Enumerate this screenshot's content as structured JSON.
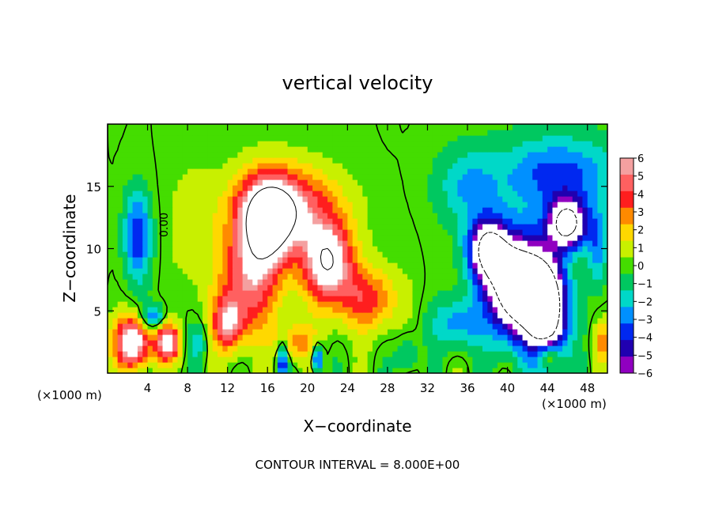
{
  "chart_data": {
    "type": "heatmap",
    "title": "vertical velocity",
    "xlabel": "X−coordinate",
    "ylabel": "Z−coordinate",
    "x_unit": "(×1000 m)",
    "y_unit": "(×1000 m)",
    "xlim": [
      0,
      50
    ],
    "ylim": [
      0,
      20
    ],
    "x_ticks": [
      4,
      8,
      12,
      16,
      20,
      24,
      28,
      32,
      36,
      40,
      44,
      48
    ],
    "y_ticks": [
      5,
      10,
      15
    ],
    "colorbar": {
      "ticks": [
        "6",
        "5",
        "4",
        "3",
        "2",
        "1",
        "0",
        "−1",
        "−2",
        "−3",
        "−4",
        "−5",
        "−6"
      ],
      "colors": [
        "#f4a0a0",
        "#ff6060",
        "#ff1e1e",
        "#ff8a00",
        "#ffd800",
        "#c8f000",
        "#44dd00",
        "#00c860",
        "#00d8c8",
        "#0090ff",
        "#0028f0",
        "#2000b0",
        "#9000c0"
      ],
      "range": [
        -6,
        6
      ]
    },
    "contour_label": "0.00",
    "contour_interval_text": "CONTOUR INTERVAL = 8.000E+00",
    "features": [
      {
        "x": 16,
        "y": 12,
        "sx": 2.8,
        "sy": 3.5,
        "amp": 9
      },
      {
        "x": 22,
        "y": 9,
        "sx": 2.5,
        "sy": 3.2,
        "amp": 8
      },
      {
        "x": 18,
        "y": 13.5,
        "sx": 5,
        "sy": 3,
        "amp": 5
      },
      {
        "x": 14,
        "y": 7,
        "sx": 3,
        "sy": 4,
        "amp": 5
      },
      {
        "x": 26,
        "y": 6,
        "sx": 3,
        "sy": 2.5,
        "amp": 4
      },
      {
        "x": 2.5,
        "y": 2.5,
        "sx": 1.8,
        "sy": 2,
        "amp": 8
      },
      {
        "x": 6,
        "y": 2.5,
        "sx": 1.2,
        "sy": 1.5,
        "amp": 7
      },
      {
        "x": 19,
        "y": 2.5,
        "sx": 2,
        "sy": 1.5,
        "amp": 3
      },
      {
        "x": 12,
        "y": 4,
        "sx": 1.5,
        "sy": 2,
        "amp": 5
      },
      {
        "x": 3,
        "y": 11,
        "sx": 1.3,
        "sy": 3.5,
        "amp": -4.5
      },
      {
        "x": 8.5,
        "y": 12,
        "sx": 2.5,
        "sy": 5,
        "amp": 1
      },
      {
        "x": 4.5,
        "y": 4.5,
        "sx": 1.2,
        "sy": 1,
        "amp": -4
      },
      {
        "x": 9,
        "y": 2.5,
        "sx": 1,
        "sy": 1.5,
        "amp": -2
      },
      {
        "x": 17.5,
        "y": 1,
        "sx": 0.5,
        "sy": 1.5,
        "amp": -5
      },
      {
        "x": 21,
        "y": 1.2,
        "sx": 0.5,
        "sy": 1.2,
        "amp": -5
      },
      {
        "x": 41,
        "y": 7,
        "sx": 3,
        "sy": 4,
        "amp": -12
      },
      {
        "x": 44,
        "y": 5,
        "sx": 2,
        "sy": 4,
        "amp": -10
      },
      {
        "x": 46,
        "y": 12,
        "sx": 2,
        "sy": 2,
        "amp": -9
      },
      {
        "x": 38,
        "y": 10,
        "sx": 2,
        "sy": 2.5,
        "amp": -8
      },
      {
        "x": 45,
        "y": 16,
        "sx": 6,
        "sy": 3,
        "amp": -4
      },
      {
        "x": 36,
        "y": 15,
        "sx": 3,
        "sy": 3,
        "amp": -2.5
      },
      {
        "x": 35,
        "y": 4,
        "sx": 2.5,
        "sy": 2,
        "amp": -3
      },
      {
        "x": 49,
        "y": 10,
        "sx": 1,
        "sy": 3,
        "amp": -3
      },
      {
        "x": 44,
        "y": 1.5,
        "sx": 1.2,
        "sy": 1,
        "amp": 4
      },
      {
        "x": 49.5,
        "y": 2.5,
        "sx": 0.8,
        "sy": 1.5,
        "amp": 3
      },
      {
        "x": 30,
        "y": 1.5,
        "sx": 1,
        "sy": 1.5,
        "amp": -2
      }
    ]
  }
}
